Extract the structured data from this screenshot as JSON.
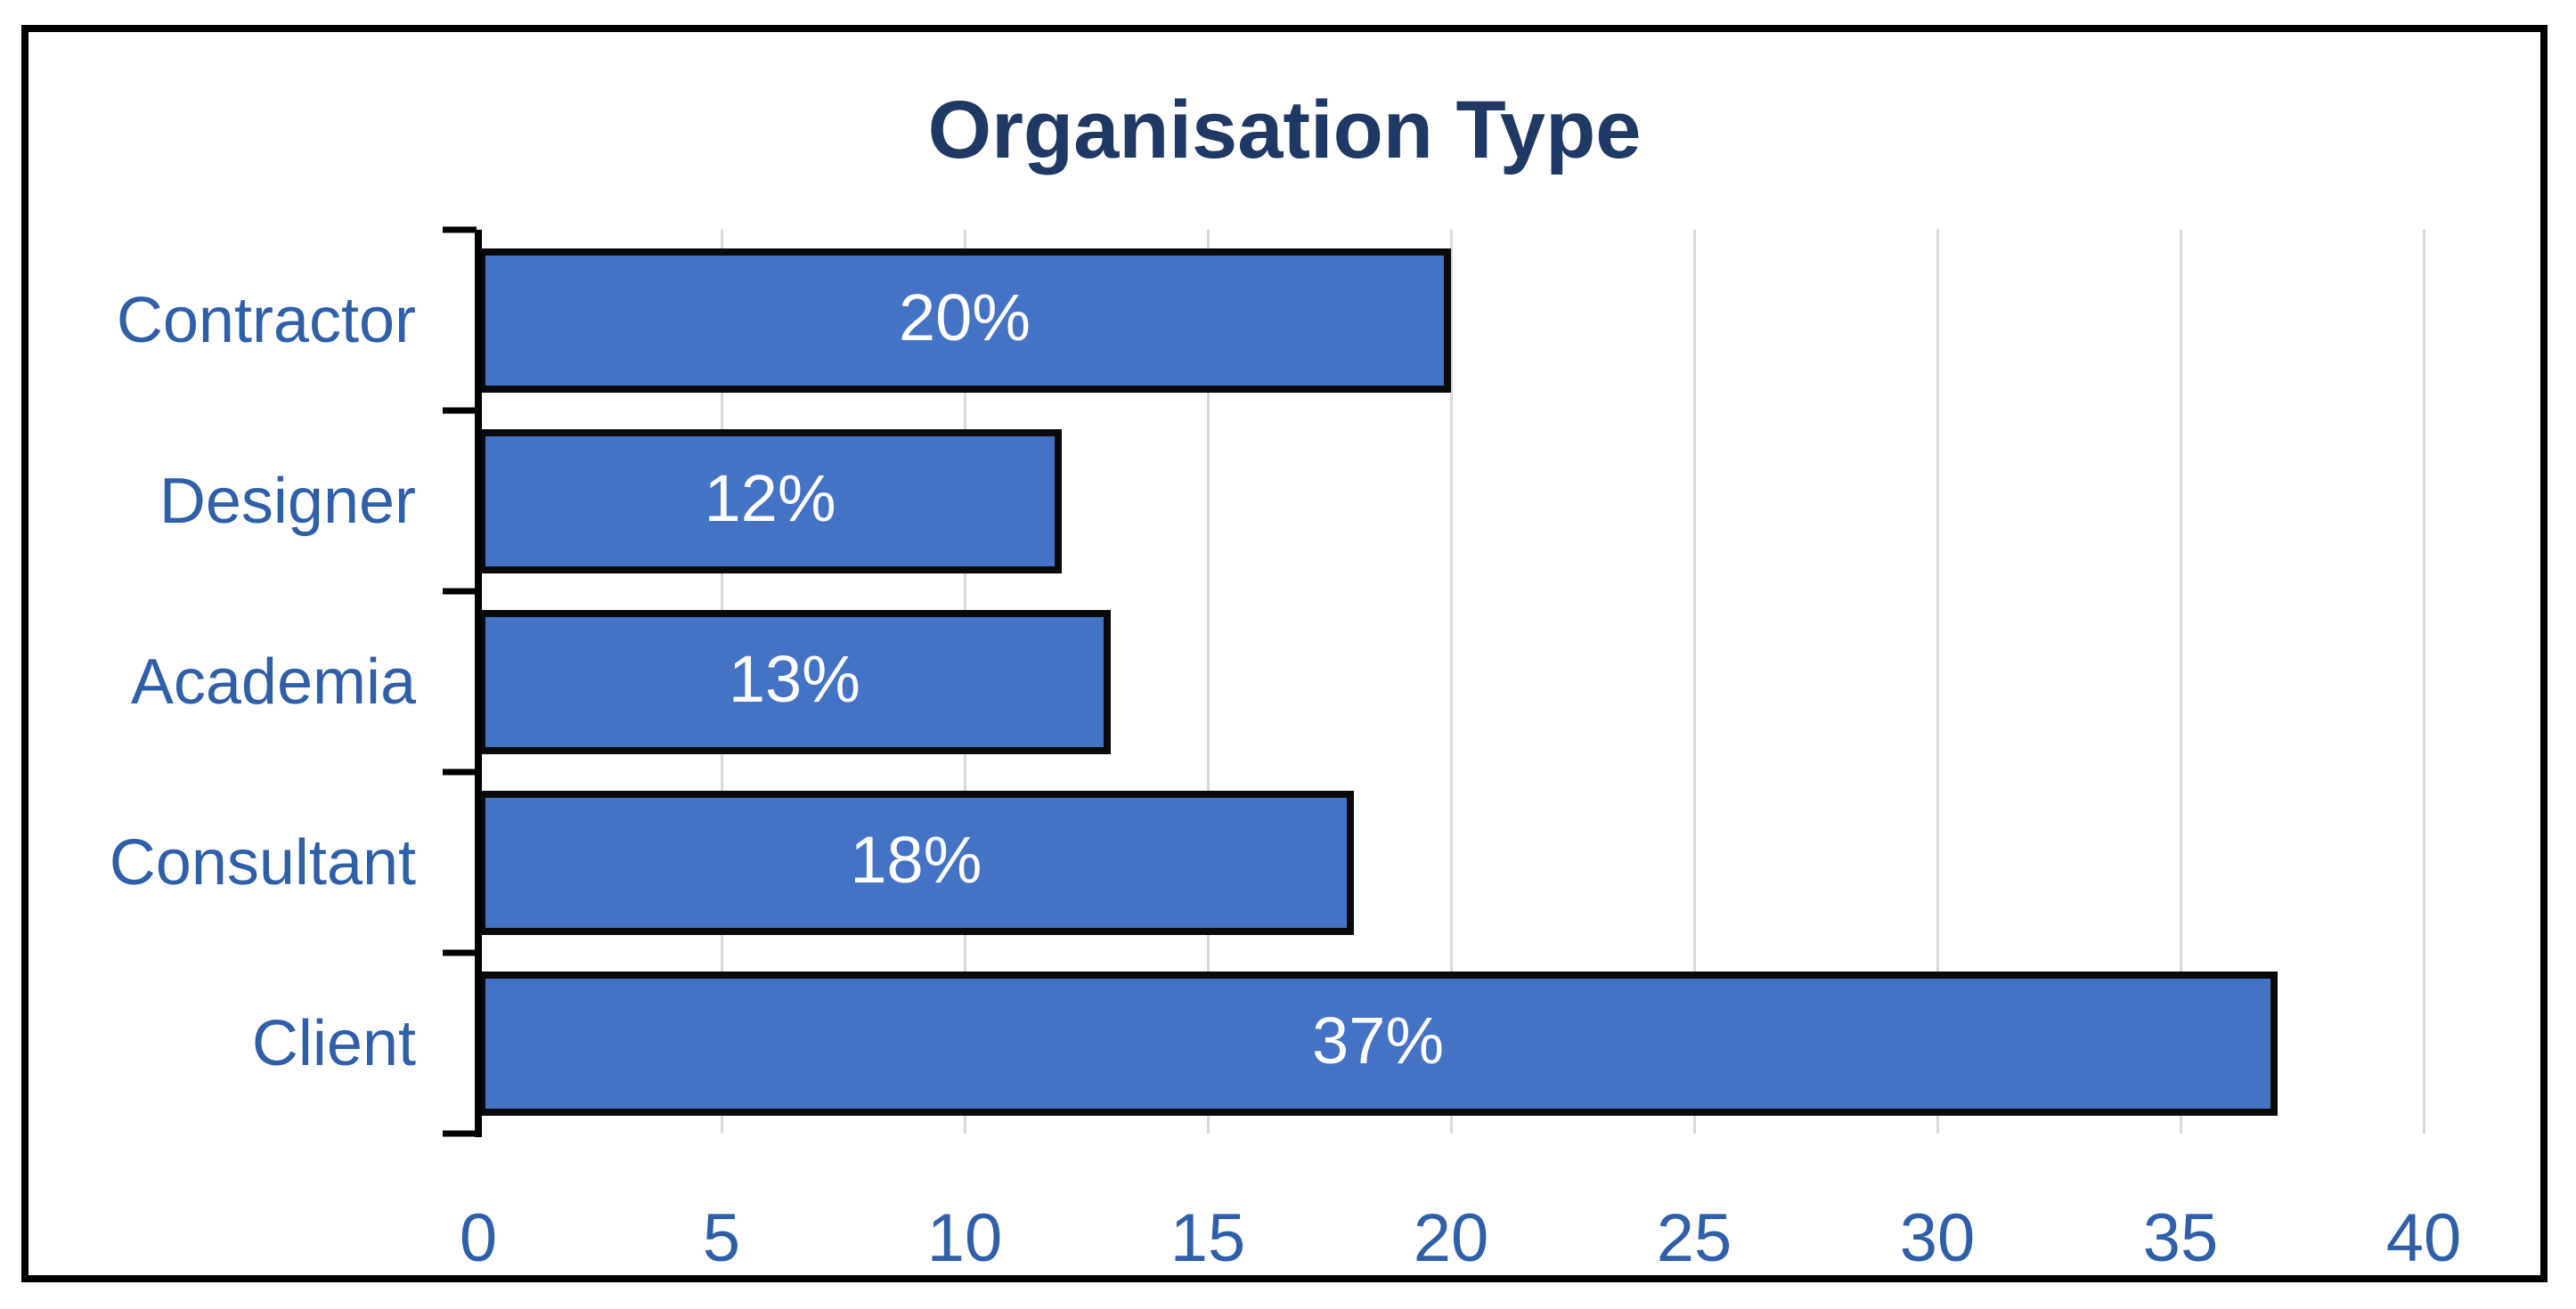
{
  "chart_data": {
    "type": "bar",
    "orientation": "horizontal",
    "title": "Organisation Type",
    "categories": [
      "Contractor",
      "Designer",
      "Academia",
      "Consultant",
      "Client"
    ],
    "values": [
      20,
      12,
      13,
      18,
      37
    ],
    "data_labels": [
      "20%",
      "12%",
      "13%",
      "18%",
      "37%"
    ],
    "series": [
      {
        "name": "Organisation Type",
        "values": [
          20,
          12,
          13,
          18,
          37
        ]
      }
    ],
    "xlabel": "",
    "ylabel": "",
    "xlim": [
      0,
      40
    ],
    "x_ticks": [
      0,
      5,
      10,
      15,
      20,
      25,
      30,
      35,
      40
    ],
    "grid": "vertical gridlines at every x tick",
    "legend": "none",
    "data_label_position": "center",
    "colors": {
      "bar_fill": "#4472C4",
      "bar_border": "#0A0A0A",
      "gridline": "#D9D9D9",
      "axis_line": "#000000",
      "title_text": "#1F3864",
      "label_text": "#2F5FA8",
      "data_label_text": "#FFFFFF",
      "background": "#FFFFFF",
      "frame_border": "#000000"
    }
  }
}
